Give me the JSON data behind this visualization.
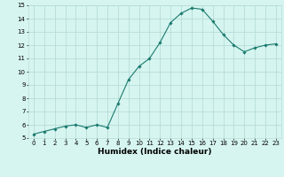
{
  "x": [
    0,
    1,
    2,
    3,
    4,
    5,
    6,
    7,
    8,
    9,
    10,
    11,
    12,
    13,
    14,
    15,
    16,
    17,
    18,
    19,
    20,
    21,
    22,
    23
  ],
  "y": [
    5.3,
    5.5,
    5.7,
    5.9,
    6.0,
    5.8,
    6.0,
    5.8,
    7.6,
    9.4,
    10.4,
    11.0,
    12.2,
    13.7,
    14.4,
    14.8,
    14.7,
    13.8,
    12.8,
    12.0,
    11.5,
    11.8,
    12.0,
    12.1
  ],
  "line_color": "#1a7a6e",
  "marker": "D",
  "marker_size": 1.8,
  "bg_color": "#d6f5f0",
  "grid_color": "#b8ddd8",
  "xlabel": "Humidex (Indice chaleur)",
  "xlim": [
    -0.5,
    23.5
  ],
  "ylim": [
    5,
    15
  ],
  "yticks": [
    5,
    6,
    7,
    8,
    9,
    10,
    11,
    12,
    13,
    14,
    15
  ],
  "xticks": [
    0,
    1,
    2,
    3,
    4,
    5,
    6,
    7,
    8,
    9,
    10,
    11,
    12,
    13,
    14,
    15,
    16,
    17,
    18,
    19,
    20,
    21,
    22,
    23
  ],
  "tick_fontsize": 5.0,
  "label_fontsize": 6.5,
  "linewidth": 0.8
}
